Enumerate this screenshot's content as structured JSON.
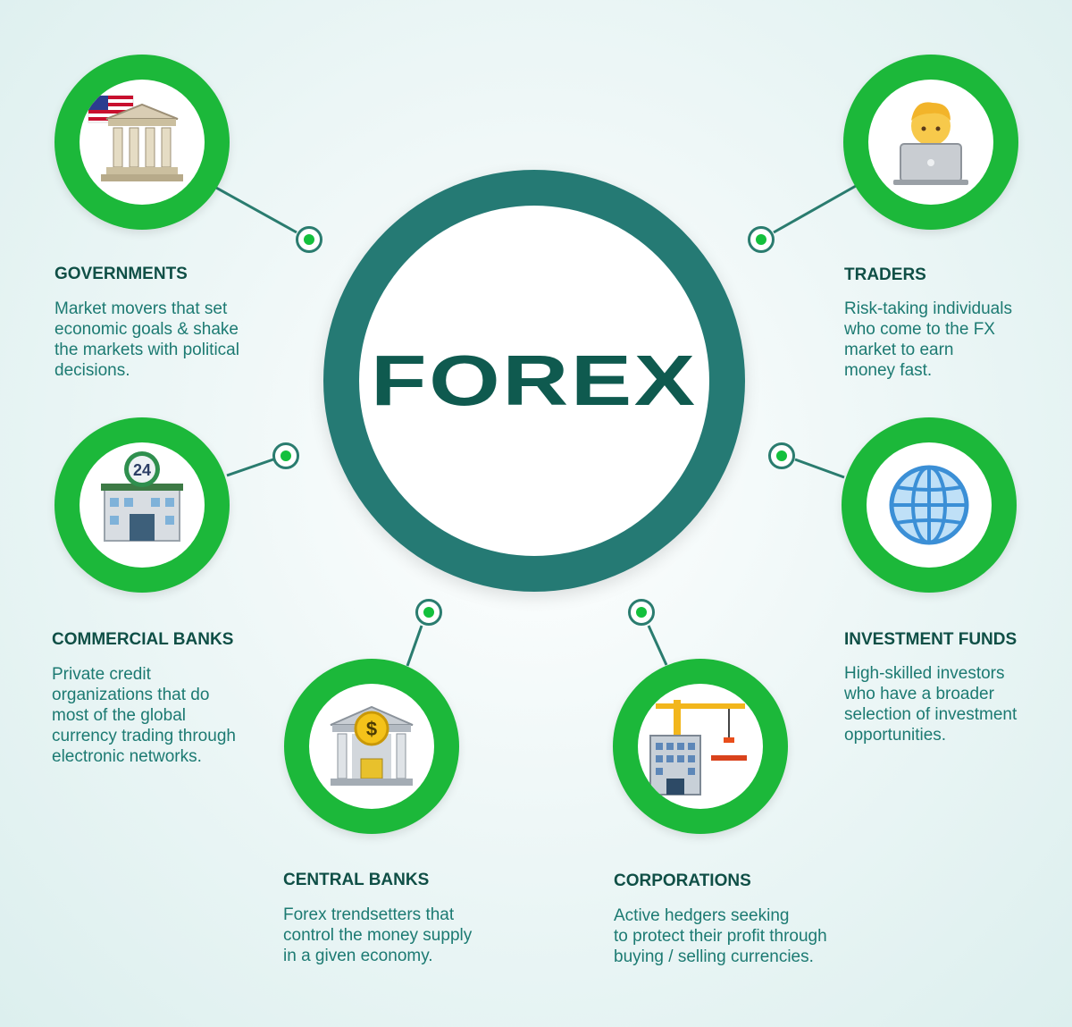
{
  "center": {
    "label": "FOREX"
  },
  "colors": {
    "ring": "#257a74",
    "accent_green": "#1cb83a",
    "title": "#0f4f46",
    "body_text": "#1c7a72"
  },
  "participants": [
    {
      "id": "governments",
      "icon": "bank-with-flag-icon",
      "title": "GOVERNMENTS",
      "description": "Market movers that set\neconomic goals & shake\nthe markets with political\ndecisions."
    },
    {
      "id": "traders",
      "icon": "person-with-laptop-icon",
      "title": "TRADERS",
      "description": "Risk-taking individuals\nwho come to the FX\nmarket to earn\nmoney fast."
    },
    {
      "id": "commercial-banks",
      "icon": "bank-24-hours-icon",
      "title": "COMMERCIAL BANKS",
      "icon_text": "24",
      "description": "Private credit\norganizations that do\nmost of the global\ncurrency trading through\nelectronic networks."
    },
    {
      "id": "investment-funds",
      "icon": "globe-icon",
      "title": "INVESTMENT FUNDS",
      "description": "High-skilled investors\nwho have a broader\nselection of investment\nopportunities."
    },
    {
      "id": "central-banks",
      "icon": "bank-dollar-icon",
      "title": "CENTRAL BANKS",
      "icon_text": "$",
      "description": "Forex trendsetters that\ncontrol the money supply\nin a given economy."
    },
    {
      "id": "corporations",
      "icon": "office-construction-icon",
      "title": "CORPORATIONS",
      "description": "Active hedgers seeking\nto protect their profit through\nbuying / selling currencies."
    }
  ]
}
